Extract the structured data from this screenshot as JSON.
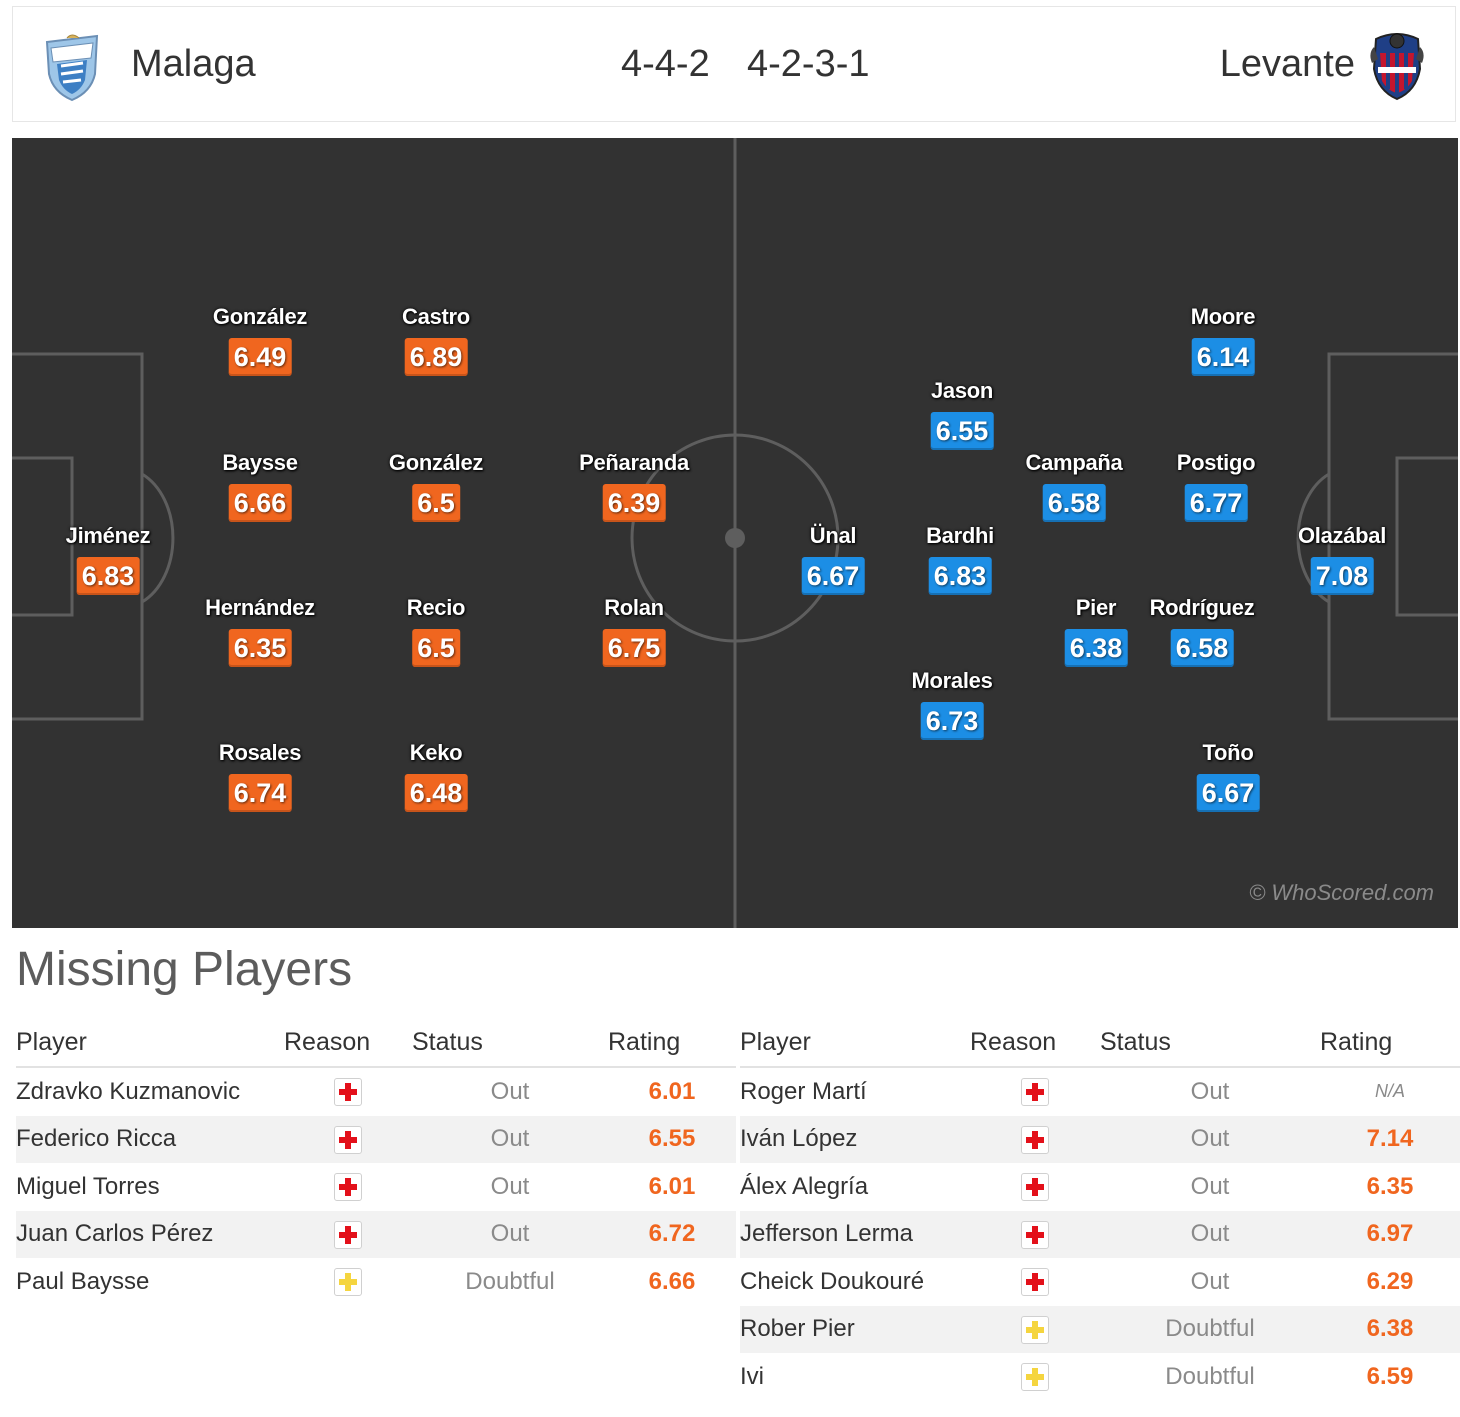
{
  "header": {
    "home": {
      "name": "Malaga",
      "formation": "4-4-2",
      "crest_icon": "malaga-crest-icon"
    },
    "away": {
      "name": "Levante",
      "formation": "4-2-3-1",
      "crest_icon": "levante-crest-icon"
    }
  },
  "pitch": {
    "watermark": "© WhoScored.com",
    "home_players": [
      {
        "name": "Jiménez",
        "rating": "6.83"
      },
      {
        "name": "González",
        "rating": "6.49"
      },
      {
        "name": "Baysse",
        "rating": "6.66"
      },
      {
        "name": "Hernández",
        "rating": "6.35"
      },
      {
        "name": "Rosales",
        "rating": "6.74"
      },
      {
        "name": "Castro",
        "rating": "6.89"
      },
      {
        "name": "González",
        "rating": "6.5"
      },
      {
        "name": "Recio",
        "rating": "6.5"
      },
      {
        "name": "Keko",
        "rating": "6.48"
      },
      {
        "name": "Peñaranda",
        "rating": "6.39"
      },
      {
        "name": "Rolan",
        "rating": "6.75"
      }
    ],
    "away_players": [
      {
        "name": "Olazábal",
        "rating": "7.08"
      },
      {
        "name": "Moore",
        "rating": "6.14"
      },
      {
        "name": "Postigo",
        "rating": "6.77"
      },
      {
        "name": "Rodríguez",
        "rating": "6.58"
      },
      {
        "name": "Toño",
        "rating": "6.67"
      },
      {
        "name": "Campaña",
        "rating": "6.58"
      },
      {
        "name": "Pier",
        "rating": "6.38"
      },
      {
        "name": "Jason",
        "rating": "6.55"
      },
      {
        "name": "Bardhi",
        "rating": "6.83"
      },
      {
        "name": "Morales",
        "rating": "6.73"
      },
      {
        "name": "Ünal",
        "rating": "6.67"
      }
    ],
    "colors": {
      "home_rating": "#f0661f",
      "away_rating": "#1c8ee5",
      "pitch": "#323232"
    }
  },
  "missing": {
    "title": "Missing Players",
    "columns": {
      "player": "Player",
      "reason": "Reason",
      "status": "Status",
      "rating": "Rating"
    },
    "home": [
      {
        "player": "Zdravko Kuzmanovic",
        "reason": "injury-icon",
        "status": "Out",
        "rating": "6.01"
      },
      {
        "player": "Federico Ricca",
        "reason": "injury-icon",
        "status": "Out",
        "rating": "6.55"
      },
      {
        "player": "Miguel Torres",
        "reason": "injury-icon",
        "status": "Out",
        "rating": "6.01"
      },
      {
        "player": "Juan Carlos Pérez",
        "reason": "injury-icon",
        "status": "Out",
        "rating": "6.72"
      },
      {
        "player": "Paul Baysse",
        "reason": "doubtful-icon",
        "status": "Doubtful",
        "rating": "6.66"
      }
    ],
    "away": [
      {
        "player": "Roger Martí",
        "reason": "injury-icon",
        "status": "Out",
        "rating": "N/A"
      },
      {
        "player": "Iván López",
        "reason": "injury-icon",
        "status": "Out",
        "rating": "7.14"
      },
      {
        "player": "Álex Alegría",
        "reason": "injury-icon",
        "status": "Out",
        "rating": "6.35"
      },
      {
        "player": "Jefferson Lerma",
        "reason": "injury-icon",
        "status": "Out",
        "rating": "6.97"
      },
      {
        "player": "Cheick Doukouré",
        "reason": "injury-icon",
        "status": "Out",
        "rating": "6.29"
      },
      {
        "player": "Rober Pier",
        "reason": "doubtful-icon",
        "status": "Doubtful",
        "rating": "6.38"
      },
      {
        "player": "Ivi",
        "reason": "doubtful-icon",
        "status": "Doubtful",
        "rating": "6.59"
      }
    ]
  }
}
